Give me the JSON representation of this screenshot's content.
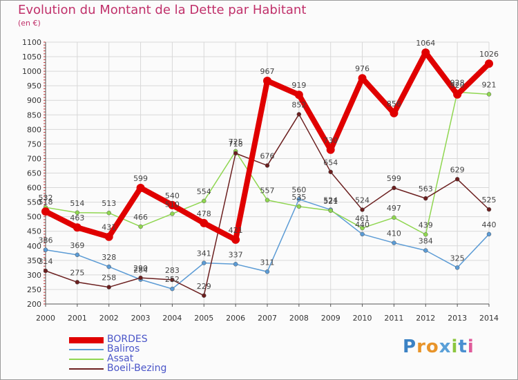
{
  "chart_data": {
    "type": "line",
    "title": "Evolution du Montant de la Dette par Habitant",
    "subtitle": "(en €)",
    "categories": [
      "2000",
      "2001",
      "2002",
      "2003",
      "2004",
      "2005",
      "2006",
      "2007",
      "2008",
      "2009",
      "2010",
      "2011",
      "2012",
      "2013",
      "2014"
    ],
    "ylim": [
      200,
      1100
    ],
    "yticks": [
      200,
      250,
      300,
      350,
      400,
      450,
      500,
      550,
      600,
      650,
      700,
      750,
      800,
      850,
      900,
      950,
      1000,
      1050,
      1100
    ],
    "grid": true,
    "legend_position": "bottom-left",
    "series": [
      {
        "name": "BORDES",
        "color": "#e00000",
        "values": [
          518,
          463,
          431,
          599,
          540,
          478,
          421,
          967,
          919,
          730,
          976,
          856,
          1064,
          920,
          1026
        ]
      },
      {
        "name": "Baliros",
        "color": "#5b9bd5",
        "values": [
          386,
          369,
          328,
          284,
          252,
          341,
          337,
          311,
          560,
          524,
          440,
          410,
          384,
          325,
          440
        ]
      },
      {
        "name": "Assat",
        "color": "#8fd650",
        "values": [
          532,
          514,
          513,
          466,
          510,
          554,
          725,
          557,
          535,
          521,
          461,
          497,
          439,
          928,
          921
        ]
      },
      {
        "name": "Boeil-Bezing",
        "color": "#6b1f1f",
        "values": [
          314,
          275,
          258,
          290,
          283,
          229,
          718,
          676,
          852,
          654,
          524,
          599,
          563,
          629,
          525
        ]
      }
    ]
  },
  "logo": {
    "text": "Proxiti",
    "colors": [
      "#3b82c4",
      "#e8942a",
      "#e8942a",
      "#5aa0d8",
      "#8cc63f",
      "#4a8fd0",
      "#e05a9a"
    ]
  }
}
